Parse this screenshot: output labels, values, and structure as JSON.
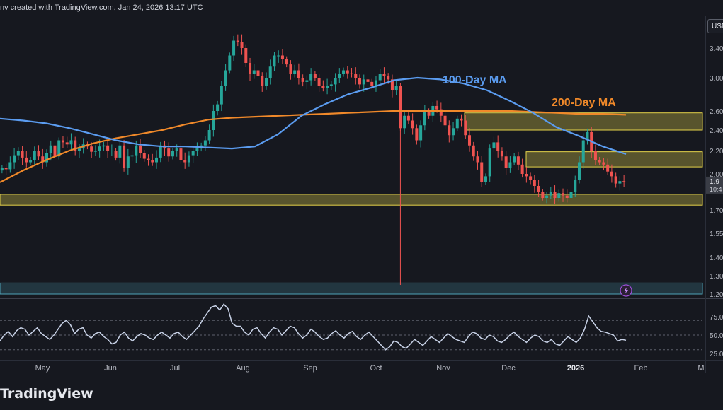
{
  "header": {
    "attribution": "nv created with TradingView.com, Jan 24, 2026 13:17 UTC"
  },
  "footer": {
    "brand": "TradingView"
  },
  "currency_badge": "USD",
  "colors": {
    "background": "#16181f",
    "candle_up": "#26a69a",
    "candle_down": "#ef5350",
    "ma100": "#5b9cf0",
    "ma200": "#f0892a",
    "zone_yellow": "#e6d34a",
    "zone_blue": "#4fa3b8",
    "rsi": "#c9d3e8"
  },
  "chart_data": [
    {
      "type": "candlestick",
      "annotations": [
        {
          "text": "100-Day MA",
          "color": "#5b9cf0"
        },
        {
          "text": "200-Day MA",
          "color": "#f0892a"
        }
      ],
      "y_axis": {
        "ticks": [
          {
            "value": 3.4,
            "label": "3.40"
          },
          {
            "value": 3.0,
            "label": "3.00"
          },
          {
            "value": 2.6,
            "label": "2.60"
          },
          {
            "value": 2.4,
            "label": "2.40"
          },
          {
            "value": 2.2,
            "label": "2.20"
          },
          {
            "value": 2.0,
            "label": "2.00"
          },
          {
            "value": 1.7,
            "label": "1.70"
          },
          {
            "value": 1.55,
            "label": "1.55"
          },
          {
            "value": 1.4,
            "label": "1.40"
          },
          {
            "value": 1.3,
            "label": "1.30"
          },
          {
            "value": 1.2,
            "label": "1.20"
          }
        ],
        "current_price_label": "1.9",
        "countdown_label": "10:4"
      },
      "x_axis": {
        "ticks": [
          {
            "label": "May",
            "bold": false
          },
          {
            "label": "Jun",
            "bold": false
          },
          {
            "label": "Jul",
            "bold": false
          },
          {
            "label": "Aug",
            "bold": false
          },
          {
            "label": "Sep",
            "bold": false
          },
          {
            "label": "Oct",
            "bold": false
          },
          {
            "label": "Nov",
            "bold": false
          },
          {
            "label": "Dec",
            "bold": false
          },
          {
            "label": "2026",
            "bold": true
          },
          {
            "label": "Feb",
            "bold": false
          },
          {
            "label": "M",
            "bold": false
          }
        ]
      },
      "zones": [
        {
          "from": 2.4,
          "to": 2.58,
          "color": "yellow"
        },
        {
          "from": 2.06,
          "to": 2.19,
          "color": "yellow"
        },
        {
          "from": 1.74,
          "to": 1.83,
          "color": "yellow"
        },
        {
          "from": 1.2,
          "to": 1.26,
          "color": "blue"
        }
      ],
      "close_series": [
        2.05,
        2.04,
        2.1,
        2.16,
        2.2,
        2.14,
        2.1,
        2.12,
        2.2,
        2.15,
        2.1,
        2.18,
        2.25,
        2.15,
        2.3,
        2.28,
        2.26,
        2.3,
        2.2,
        2.22,
        2.26,
        2.24,
        2.19,
        2.2,
        2.24,
        2.25,
        2.2,
        2.2,
        2.14,
        2.25,
        2.05,
        2.15,
        2.16,
        2.25,
        2.18,
        2.13,
        2.12,
        2.1,
        2.14,
        2.25,
        2.22,
        2.15,
        2.2,
        2.22,
        2.12,
        2.1,
        2.16,
        2.2,
        2.22,
        2.25,
        2.3,
        2.4,
        2.6,
        2.68,
        2.9,
        3.1,
        3.3,
        3.5,
        3.48,
        3.4,
        3.2,
        3.05,
        3.1,
        3.02,
        2.9,
        3.0,
        3.15,
        3.3,
        3.3,
        3.25,
        3.18,
        3.05,
        3.1,
        3.0,
        2.95,
        2.97,
        3.05,
        3.0,
        2.9,
        2.88,
        2.9,
        2.92,
        3.0,
        3.05,
        3.1,
        3.06,
        3.05,
        3.0,
        2.92,
        2.98,
        2.95,
        2.9,
        2.97,
        3.05,
        3.02,
        2.98,
        2.85,
        2.9,
        2.42,
        2.55,
        2.5,
        2.42,
        2.3,
        2.45,
        2.6,
        2.55,
        2.66,
        2.62,
        2.55,
        2.45,
        2.35,
        2.42,
        2.52,
        2.5,
        2.35,
        2.25,
        2.15,
        2.1,
        1.93,
        1.98,
        2.22,
        2.28,
        2.2,
        2.15,
        2.05,
        2.1,
        2.15,
        2.08,
        2.0,
        1.98,
        1.95,
        1.9,
        1.85,
        1.8,
        1.82,
        1.85,
        1.8,
        1.84,
        1.82,
        1.8,
        1.85,
        1.95,
        2.1,
        2.3,
        2.38,
        2.2,
        2.12,
        2.1,
        2.08,
        2.02,
        1.98,
        1.92,
        1.94,
        1.93
      ],
      "ma100": [
        2.52,
        2.5,
        2.47,
        2.42,
        2.36,
        2.3,
        2.26,
        2.24,
        2.24,
        2.23,
        2.22,
        2.24,
        2.36,
        2.55,
        2.68,
        2.8,
        2.88,
        2.97,
        3.0,
        2.98,
        2.93,
        2.85,
        2.72,
        2.58,
        2.43,
        2.34,
        2.24,
        2.17
      ],
      "ma200": [
        1.93,
        2.03,
        2.12,
        2.2,
        2.27,
        2.32,
        2.36,
        2.4,
        2.46,
        2.51,
        2.53,
        2.54,
        2.55,
        2.56,
        2.57,
        2.58,
        2.59,
        2.6,
        2.6,
        2.6,
        2.6,
        2.6,
        2.6,
        2.59,
        2.58,
        2.57,
        2.57,
        2.56
      ]
    },
    {
      "type": "line",
      "y_axis": {
        "ticks": [
          {
            "value": 75,
            "label": "75.0"
          },
          {
            "value": 50,
            "label": "50.0"
          },
          {
            "value": 25,
            "label": "25.0"
          }
        ]
      },
      "guide_lines": [
        70,
        50,
        30
      ],
      "values": [
        42,
        50,
        55,
        48,
        56,
        60,
        58,
        50,
        55,
        60,
        52,
        48,
        44,
        50,
        58,
        66,
        70,
        64,
        52,
        58,
        60,
        50,
        46,
        52,
        54,
        48,
        44,
        38,
        40,
        50,
        54,
        46,
        42,
        48,
        52,
        50,
        46,
        44,
        50,
        54,
        50,
        46,
        52,
        54,
        48,
        44,
        50,
        56,
        62,
        72,
        80,
        88,
        90,
        84,
        92,
        86,
        66,
        62,
        62,
        54,
        50,
        58,
        60,
        52,
        46,
        54,
        60,
        58,
        50,
        56,
        62,
        60,
        52,
        46,
        50,
        58,
        54,
        48,
        44,
        46,
        52,
        56,
        50,
        46,
        52,
        55,
        48,
        44,
        50,
        54,
        48,
        42,
        36,
        30,
        34,
        42,
        40,
        34,
        32,
        38,
        44,
        40,
        36,
        42,
        48,
        44,
        40,
        46,
        52,
        48,
        44,
        42,
        40,
        48,
        54,
        52,
        46,
        44,
        50,
        48,
        42,
        40,
        44,
        50,
        54,
        48,
        44,
        40,
        46,
        50,
        48,
        42,
        40,
        44,
        38,
        36,
        42,
        48,
        44,
        40,
        46,
        58,
        76,
        68,
        60,
        55,
        54,
        52,
        50,
        42,
        44,
        43
      ]
    }
  ]
}
